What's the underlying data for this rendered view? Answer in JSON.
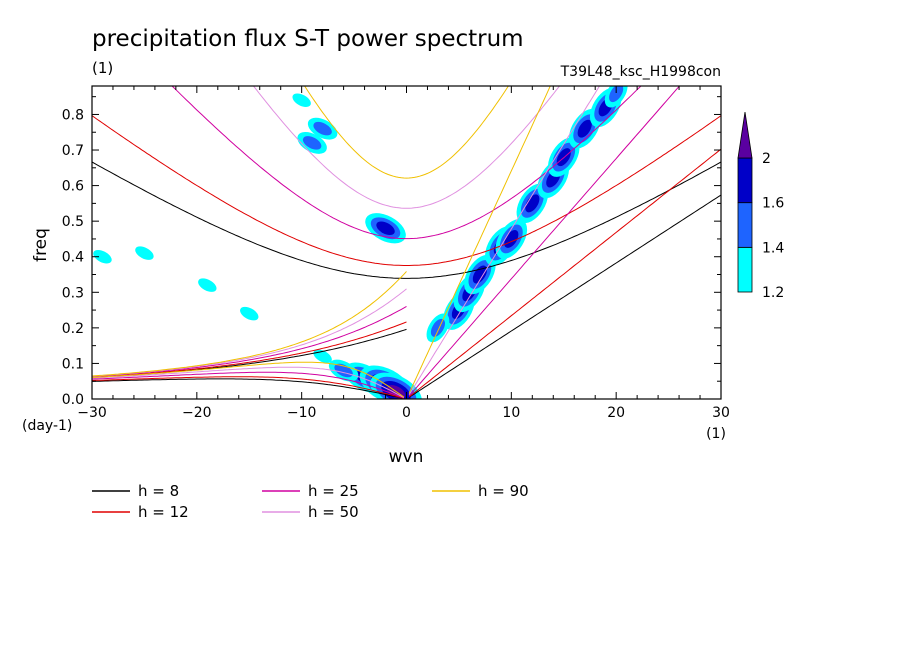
{
  "chart_data": {
    "type": "heatmap",
    "title": "precipitation flux S-T power spectrum",
    "units_label": "(1)",
    "run_label": "T39L48_ksc_H1998con",
    "xlabel": "wvn",
    "ylabel": "freq",
    "x_units": "(1)",
    "y_units": "(day-1)",
    "xlim": [
      -30,
      30
    ],
    "ylim": [
      0,
      0.88
    ],
    "x_ticks": [
      -30,
      -20,
      -10,
      0,
      10,
      20,
      30
    ],
    "x_tick_labels": [
      "−30",
      "−20",
      "−10",
      "0",
      "10",
      "20",
      "30"
    ],
    "y_ticks": [
      0,
      0.1,
      0.2,
      0.3,
      0.4,
      0.5,
      0.6,
      0.7,
      0.8
    ],
    "y_tick_labels": [
      "0.0",
      "0.1",
      "0.2",
      "0.3",
      "0.4",
      "0.5",
      "0.6",
      "0.7",
      "0.8"
    ],
    "colorbar": {
      "levels": [
        1.2,
        1.4,
        1.6,
        2
      ],
      "labels": [
        "1.2",
        "1.4",
        "1.6",
        "2"
      ],
      "colors": [
        "#00ffff",
        "#1e64ff",
        "#0000c8",
        "#5a00a0"
      ]
    },
    "dispersion_curves": [
      {
        "h": 8,
        "label": "h =  8",
        "color": "#000000"
      },
      {
        "h": 12,
        "label": "h = 12",
        "color": "#e00000"
      },
      {
        "h": 25,
        "label": "h = 25",
        "color": "#d000a0"
      },
      {
        "h": 50,
        "label": "h = 50",
        "color": "#e090e0"
      },
      {
        "h": 90,
        "label": "h = 90",
        "color": "#f0c000"
      }
    ],
    "blobs": [
      {
        "wvn": 5,
        "freq": 0.25,
        "level": 3
      },
      {
        "wvn": 6,
        "freq": 0.3,
        "level": 3
      },
      {
        "wvn": 7,
        "freq": 0.35,
        "level": 3
      },
      {
        "wvn": 9,
        "freq": 0.43,
        "level": 3
      },
      {
        "wvn": 10,
        "freq": 0.45,
        "level": 3
      },
      {
        "wvn": 12,
        "freq": 0.55,
        "level": 3
      },
      {
        "wvn": 14,
        "freq": 0.62,
        "level": 3
      },
      {
        "wvn": 15,
        "freq": 0.68,
        "level": 3
      },
      {
        "wvn": 17,
        "freq": 0.76,
        "level": 3
      },
      {
        "wvn": 19,
        "freq": 0.82,
        "level": 3
      },
      {
        "wvn": 20,
        "freq": 0.86,
        "level": 2
      },
      {
        "wvn": -2,
        "freq": 0.48,
        "level": 3
      },
      {
        "wvn": -4,
        "freq": 0.06,
        "level": 3
      },
      {
        "wvn": -2,
        "freq": 0.04,
        "level": 4
      },
      {
        "wvn": -1,
        "freq": 0.02,
        "level": 4
      },
      {
        "wvn": -6,
        "freq": 0.08,
        "level": 2
      },
      {
        "wvn": -8,
        "freq": 0.12,
        "level": 1
      },
      {
        "wvn": -9,
        "freq": 0.72,
        "level": 2
      },
      {
        "wvn": -8,
        "freq": 0.76,
        "level": 2
      },
      {
        "wvn": -10,
        "freq": 0.84,
        "level": 1
      },
      {
        "wvn": -15,
        "freq": 0.24,
        "level": 1
      },
      {
        "wvn": -19,
        "freq": 0.32,
        "level": 1
      },
      {
        "wvn": -25,
        "freq": 0.41,
        "level": 1
      },
      {
        "wvn": -29,
        "freq": 0.4,
        "level": 1
      },
      {
        "wvn": 3,
        "freq": 0.2,
        "level": 2
      }
    ]
  }
}
